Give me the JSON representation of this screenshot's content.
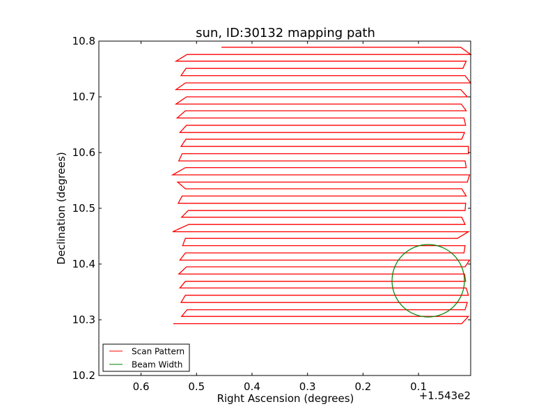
{
  "chart_data": {
    "type": "line",
    "title": "sun, ID:30132 mapping path",
    "xlabel": "Right Ascension (degrees)",
    "ylabel": "Declination (degrees)",
    "x_offset_label": "+1.543e2",
    "xlim": [
      0.676,
      0.006
    ],
    "ylim": [
      10.2,
      10.8
    ],
    "x_ticks": [
      0.6,
      0.5,
      0.4,
      0.3,
      0.2,
      0.1
    ],
    "x_tick_labels": [
      "0.6",
      "0.5",
      "0.4",
      "0.3",
      "0.2",
      "0.1"
    ],
    "y_ticks": [
      10.2,
      10.3,
      10.4,
      10.5,
      10.6,
      10.7,
      10.8
    ],
    "y_tick_labels": [
      "10.2",
      "10.3",
      "10.4",
      "10.5",
      "10.6",
      "10.7",
      "10.8"
    ],
    "grid": false,
    "legend_placement": "lower-left",
    "series": [
      {
        "name": "Scan Pattern",
        "color": "#ff0000",
        "row_format": "[dec, ra_left_end, ra_right_end]; rows traversed alternately rightward then leftward",
        "rows": [
          [
            10.789,
            0.455,
            0.024
          ],
          [
            10.776,
            0.517,
            0.006
          ],
          [
            10.764,
            0.537,
            0.014
          ],
          [
            10.751,
            0.519,
            0.02
          ],
          [
            10.738,
            0.528,
            0.016
          ],
          [
            10.725,
            0.52,
            0.006
          ],
          [
            10.713,
            0.537,
            0.024
          ],
          [
            10.7,
            0.518,
            0.012
          ],
          [
            10.687,
            0.537,
            0.023
          ],
          [
            10.675,
            0.52,
            0.014
          ],
          [
            10.662,
            0.535,
            0.018
          ],
          [
            10.649,
            0.518,
            0.015
          ],
          [
            10.636,
            0.53,
            0.017
          ],
          [
            10.624,
            0.519,
            0.022
          ],
          [
            10.611,
            0.528,
            0.01
          ],
          [
            10.598,
            0.526,
            0.01
          ],
          [
            10.585,
            0.532,
            0.016
          ],
          [
            10.573,
            0.52,
            0.014
          ],
          [
            10.56,
            0.543,
            0.008
          ],
          [
            10.547,
            0.534,
            0.012
          ],
          [
            10.535,
            0.52,
            0.022
          ],
          [
            10.522,
            0.526,
            0.014
          ],
          [
            10.509,
            0.533,
            0.015
          ],
          [
            10.496,
            0.515,
            0.016
          ],
          [
            10.484,
            0.527,
            0.022
          ],
          [
            10.471,
            0.514,
            0.016
          ],
          [
            10.458,
            0.543,
            0.01
          ],
          [
            10.446,
            0.52,
            0.03
          ],
          [
            10.433,
            0.525,
            0.016
          ],
          [
            10.42,
            0.52,
            0.018
          ],
          [
            10.407,
            0.53,
            0.008
          ],
          [
            10.395,
            0.518,
            0.016
          ],
          [
            10.382,
            0.532,
            0.017
          ],
          [
            10.369,
            0.52,
            0.015
          ],
          [
            10.357,
            0.53,
            0.014
          ],
          [
            10.344,
            0.52,
            0.01
          ],
          [
            10.331,
            0.528,
            0.012
          ],
          [
            10.318,
            0.517,
            0.016
          ],
          [
            10.306,
            0.527,
            0.01
          ],
          [
            10.293,
            0.542,
            0.022
          ]
        ]
      },
      {
        "name": "Beam Width",
        "color": "#008000",
        "circle": {
          "ra_center": 0.0825,
          "dec_center": 10.37,
          "radius_deg": 0.065
        }
      }
    ]
  }
}
